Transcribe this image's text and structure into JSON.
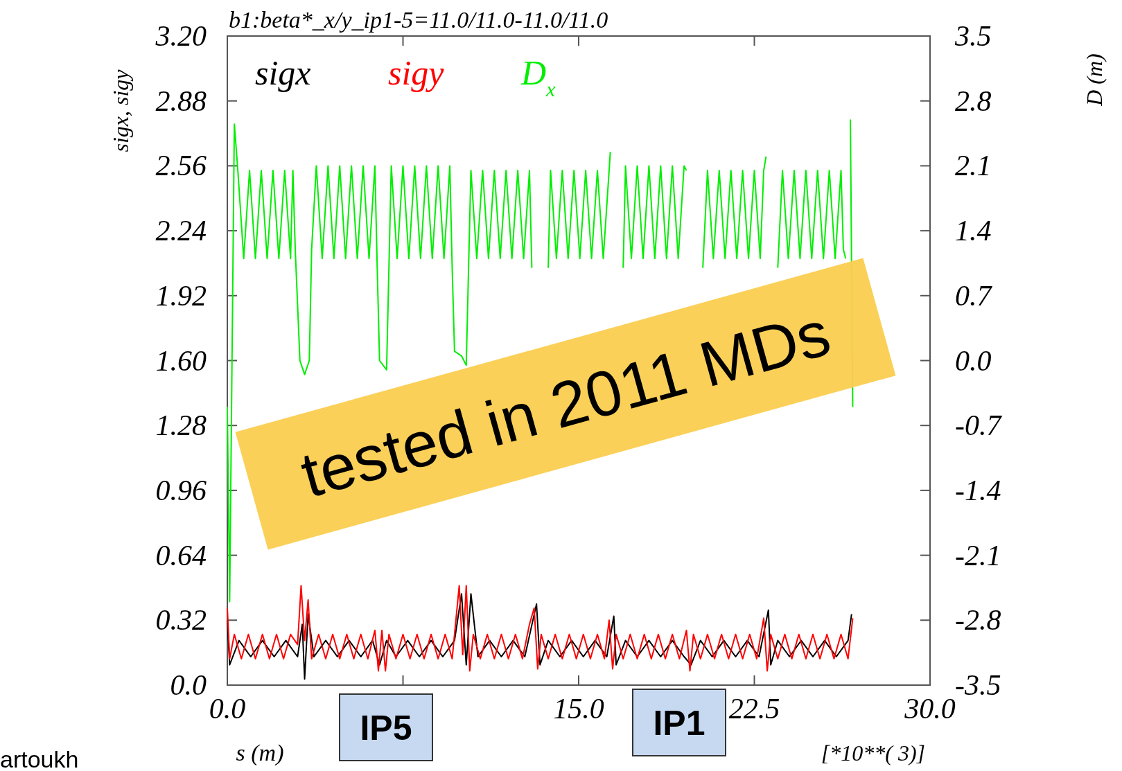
{
  "chart_data": {
    "type": "line",
    "title": "b1:beta*_x/y_ip1-5=11.0/11.0-11.0/11.0",
    "xlabel": "s (m)",
    "ylabel": "sigx, sigy",
    "y2label": "D (m)",
    "annotations": [
      "tested in 2011 MDs",
      "IP5",
      "IP1",
      "[*10**( 3)]",
      "artoukh"
    ],
    "xlim": [
      0,
      30
    ],
    "xticks": [
      {
        "value": 0,
        "label": "0.0"
      },
      {
        "value": 7.5,
        "label": null
      },
      {
        "value": 15,
        "label": "15.0"
      },
      {
        "value": 22.5,
        "label": "22.5"
      },
      {
        "value": 30,
        "label": "30.0"
      }
    ],
    "ylim": [
      0,
      3.2
    ],
    "yticks": [
      {
        "value": 0,
        "label": "0.0"
      },
      0.32,
      0.64,
      0.96,
      1.28,
      {
        "value": 1.6,
        "label": "1.60"
      },
      1.92,
      2.24,
      2.56,
      2.88,
      {
        "value": 3.2,
        "label": "3.20"
      }
    ],
    "y2lim": [
      -3.5,
      3.5
    ],
    "y2ticks": [
      -3.5,
      -2.8,
      -2.1,
      -1.4,
      -0.7,
      {
        "value": 0,
        "label": "0.0"
      },
      0.7,
      1.4,
      2.1,
      2.8,
      3.5
    ],
    "legend": "top left",
    "grid": false,
    "marker": "none",
    "line_style": "solid",
    "series": [
      {
        "name": "sigx",
        "color": "#000000",
        "x": [
          0,
          0.1,
          0.5,
          1.0,
          1.5,
          2.0,
          2.5,
          3.0,
          3.2,
          3.3,
          3.45,
          3.7,
          4.2,
          4.7,
          5.2,
          5.7,
          6.2,
          6.5,
          6.8,
          7.2,
          7.7,
          8.2,
          8.7,
          9.2,
          9.7,
          10.0,
          10.2,
          10.4,
          10.7,
          11.2,
          11.7,
          12.2,
          12.7,
          13.2,
          13.35,
          13.7,
          14.2,
          14.7,
          15.2,
          15.7,
          16.2,
          16.5,
          16.6,
          17.0,
          17.5,
          18.0,
          18.5,
          19.0,
          19.5,
          19.8,
          20.2,
          20.7,
          21.2,
          21.7,
          22.2,
          22.7,
          23.1,
          23.2,
          23.5,
          24.0,
          24.5,
          25.0,
          25.5,
          26.0,
          26.5,
          26.65
        ],
        "values": [
          0.32,
          0.1,
          0.22,
          0.14,
          0.22,
          0.14,
          0.22,
          0.14,
          0.3,
          0.03,
          0.35,
          0.14,
          0.22,
          0.14,
          0.22,
          0.14,
          0.22,
          0.1,
          0.22,
          0.14,
          0.22,
          0.14,
          0.22,
          0.14,
          0.22,
          0.45,
          0.1,
          0.45,
          0.14,
          0.22,
          0.14,
          0.22,
          0.14,
          0.4,
          0.1,
          0.22,
          0.14,
          0.22,
          0.14,
          0.22,
          0.14,
          0.34,
          0.1,
          0.22,
          0.14,
          0.22,
          0.14,
          0.22,
          0.14,
          0.1,
          0.22,
          0.14,
          0.22,
          0.14,
          0.22,
          0.14,
          0.37,
          0.1,
          0.22,
          0.14,
          0.22,
          0.14,
          0.22,
          0.14,
          0.22,
          0.35
        ]
      },
      {
        "name": "sigy",
        "color": "#ff0000",
        "x": [
          0,
          0.1,
          0.3,
          0.6,
          0.9,
          1.2,
          1.5,
          1.8,
          2.1,
          2.4,
          2.7,
          3.0,
          3.15,
          3.3,
          3.45,
          3.6,
          3.9,
          4.2,
          4.5,
          4.8,
          5.1,
          5.4,
          5.7,
          6.0,
          6.3,
          6.45,
          6.6,
          6.75,
          6.9,
          7.2,
          7.5,
          7.8,
          8.1,
          8.4,
          8.7,
          9.0,
          9.3,
          9.6,
          9.9,
          10.05,
          10.2,
          10.35,
          10.5,
          10.8,
          11.1,
          11.4,
          11.7,
          12.0,
          12.3,
          12.6,
          12.9,
          13.1,
          13.25,
          13.4,
          13.7,
          14.0,
          14.3,
          14.6,
          14.9,
          15.2,
          15.5,
          15.8,
          16.1,
          16.3,
          16.45,
          16.6,
          16.9,
          17.2,
          17.5,
          17.8,
          18.1,
          18.4,
          18.7,
          19.0,
          19.3,
          19.6,
          19.75,
          19.9,
          20.2,
          20.5,
          20.8,
          21.1,
          21.4,
          21.7,
          22.0,
          22.3,
          22.6,
          22.9,
          23.05,
          23.2,
          23.5,
          23.8,
          24.1,
          24.4,
          24.7,
          25.0,
          25.3,
          25.6,
          25.9,
          26.2,
          26.5,
          26.7
        ],
        "values": [
          0.38,
          0.13,
          0.25,
          0.13,
          0.25,
          0.13,
          0.25,
          0.13,
          0.25,
          0.13,
          0.25,
          0.2,
          0.49,
          0.22,
          0.42,
          0.13,
          0.25,
          0.13,
          0.25,
          0.13,
          0.25,
          0.13,
          0.25,
          0.13,
          0.27,
          0.07,
          0.27,
          0.07,
          0.25,
          0.13,
          0.25,
          0.13,
          0.25,
          0.13,
          0.25,
          0.13,
          0.25,
          0.13,
          0.49,
          0.15,
          0.49,
          0.07,
          0.25,
          0.13,
          0.25,
          0.13,
          0.25,
          0.13,
          0.25,
          0.13,
          0.3,
          0.38,
          0.08,
          0.25,
          0.13,
          0.25,
          0.13,
          0.25,
          0.13,
          0.25,
          0.13,
          0.25,
          0.13,
          0.32,
          0.08,
          0.25,
          0.13,
          0.25,
          0.13,
          0.25,
          0.13,
          0.25,
          0.13,
          0.25,
          0.13,
          0.27,
          0.07,
          0.25,
          0.13,
          0.25,
          0.13,
          0.25,
          0.13,
          0.25,
          0.13,
          0.25,
          0.13,
          0.33,
          0.07,
          0.25,
          0.13,
          0.25,
          0.13,
          0.25,
          0.13,
          0.25,
          0.13,
          0.25,
          0.13,
          0.25,
          0.13,
          0.33
        ]
      },
      {
        "name": "D$_{x}$",
        "color": "#00ee00",
        "axis": "y2",
        "x": [
          0,
          0.1,
          0.3,
          0.45,
          0.7,
          0.95,
          1.2,
          1.45,
          1.7,
          1.95,
          2.2,
          2.45,
          2.7,
          2.8,
          2.9,
          3.1,
          3.3,
          3.5,
          3.6,
          3.8,
          4.05,
          4.3,
          4.55,
          4.8,
          5.05,
          5.3,
          5.55,
          5.8,
          6.05,
          6.3,
          6.4,
          6.5,
          6.8,
          6.9,
          7.0,
          7.25,
          7.5,
          7.75,
          8.0,
          8.25,
          8.5,
          8.75,
          9.0,
          9.25,
          9.5,
          9.6,
          9.7,
          10.0,
          10.2,
          10.3,
          10.4,
          10.65,
          10.9,
          11.15,
          11.4,
          11.65,
          11.9,
          12.15,
          12.4,
          12.65,
          12.9,
          13.0,
          13.1,
          13.3,
          13.6,
          13.7,
          13.8,
          14.05,
          14.3,
          14.55,
          14.8,
          15.05,
          15.3,
          15.55,
          15.8,
          16.05,
          16.3,
          16.35,
          16.45,
          16.7,
          16.9,
          17.0,
          17.25,
          17.5,
          17.75,
          18.0,
          18.25,
          18.5,
          18.75,
          19.0,
          19.25,
          19.5,
          19.6,
          19.7,
          19.9,
          20.1,
          20.3,
          20.5,
          20.75,
          21.0,
          21.25,
          21.5,
          21.75,
          22.0,
          22.25,
          22.5,
          22.75,
          22.9,
          23.0,
          23.1,
          23.3,
          23.5,
          23.7,
          23.95,
          24.2,
          24.45,
          24.7,
          24.95,
          25.2,
          25.45,
          25.7,
          25.95,
          26.2,
          26.3,
          26.4,
          26.5,
          26.6,
          26.7
        ],
        "values": [
          -0.5,
          -2.6,
          2.55,
          2.05,
          1.1,
          2.05,
          1.1,
          2.05,
          1.1,
          2.05,
          1.1,
          2.05,
          1.1,
          2.05,
          1.2,
          0.0,
          -0.15,
          0.0,
          1.2,
          2.1,
          1.1,
          2.1,
          1.1,
          2.1,
          1.1,
          2.1,
          1.1,
          2.1,
          1.1,
          2.1,
          1.0,
          0.0,
          -0.1,
          1.0,
          2.1,
          1.1,
          2.1,
          1.1,
          2.1,
          1.1,
          2.1,
          1.1,
          2.1,
          1.1,
          2.1,
          1.0,
          0.1,
          0.05,
          -0.05,
          1.0,
          2.05,
          1.1,
          2.05,
          1.1,
          2.05,
          1.1,
          2.05,
          1.1,
          2.05,
          1.1,
          2.05,
          1.0,
          null,
          null,
          null,
          1.0,
          2.05,
          1.1,
          2.05,
          1.1,
          2.05,
          1.1,
          2.05,
          1.1,
          2.05,
          1.1,
          2.05,
          2.25,
          null,
          null,
          1.0,
          2.1,
          1.1,
          2.1,
          1.1,
          2.1,
          1.1,
          2.1,
          1.1,
          2.1,
          1.1,
          2.1,
          2.05,
          null,
          null,
          null,
          1.0,
          2.05,
          1.1,
          2.05,
          1.1,
          2.05,
          1.1,
          2.05,
          1.1,
          2.05,
          1.1,
          2.05,
          2.2,
          null,
          null,
          1.0,
          2.05,
          1.1,
          2.05,
          1.1,
          2.05,
          1.1,
          2.05,
          1.1,
          2.05,
          1.1,
          2.05,
          1.2,
          1.1,
          null,
          2.6,
          -0.5
        ]
      }
    ]
  }
}
